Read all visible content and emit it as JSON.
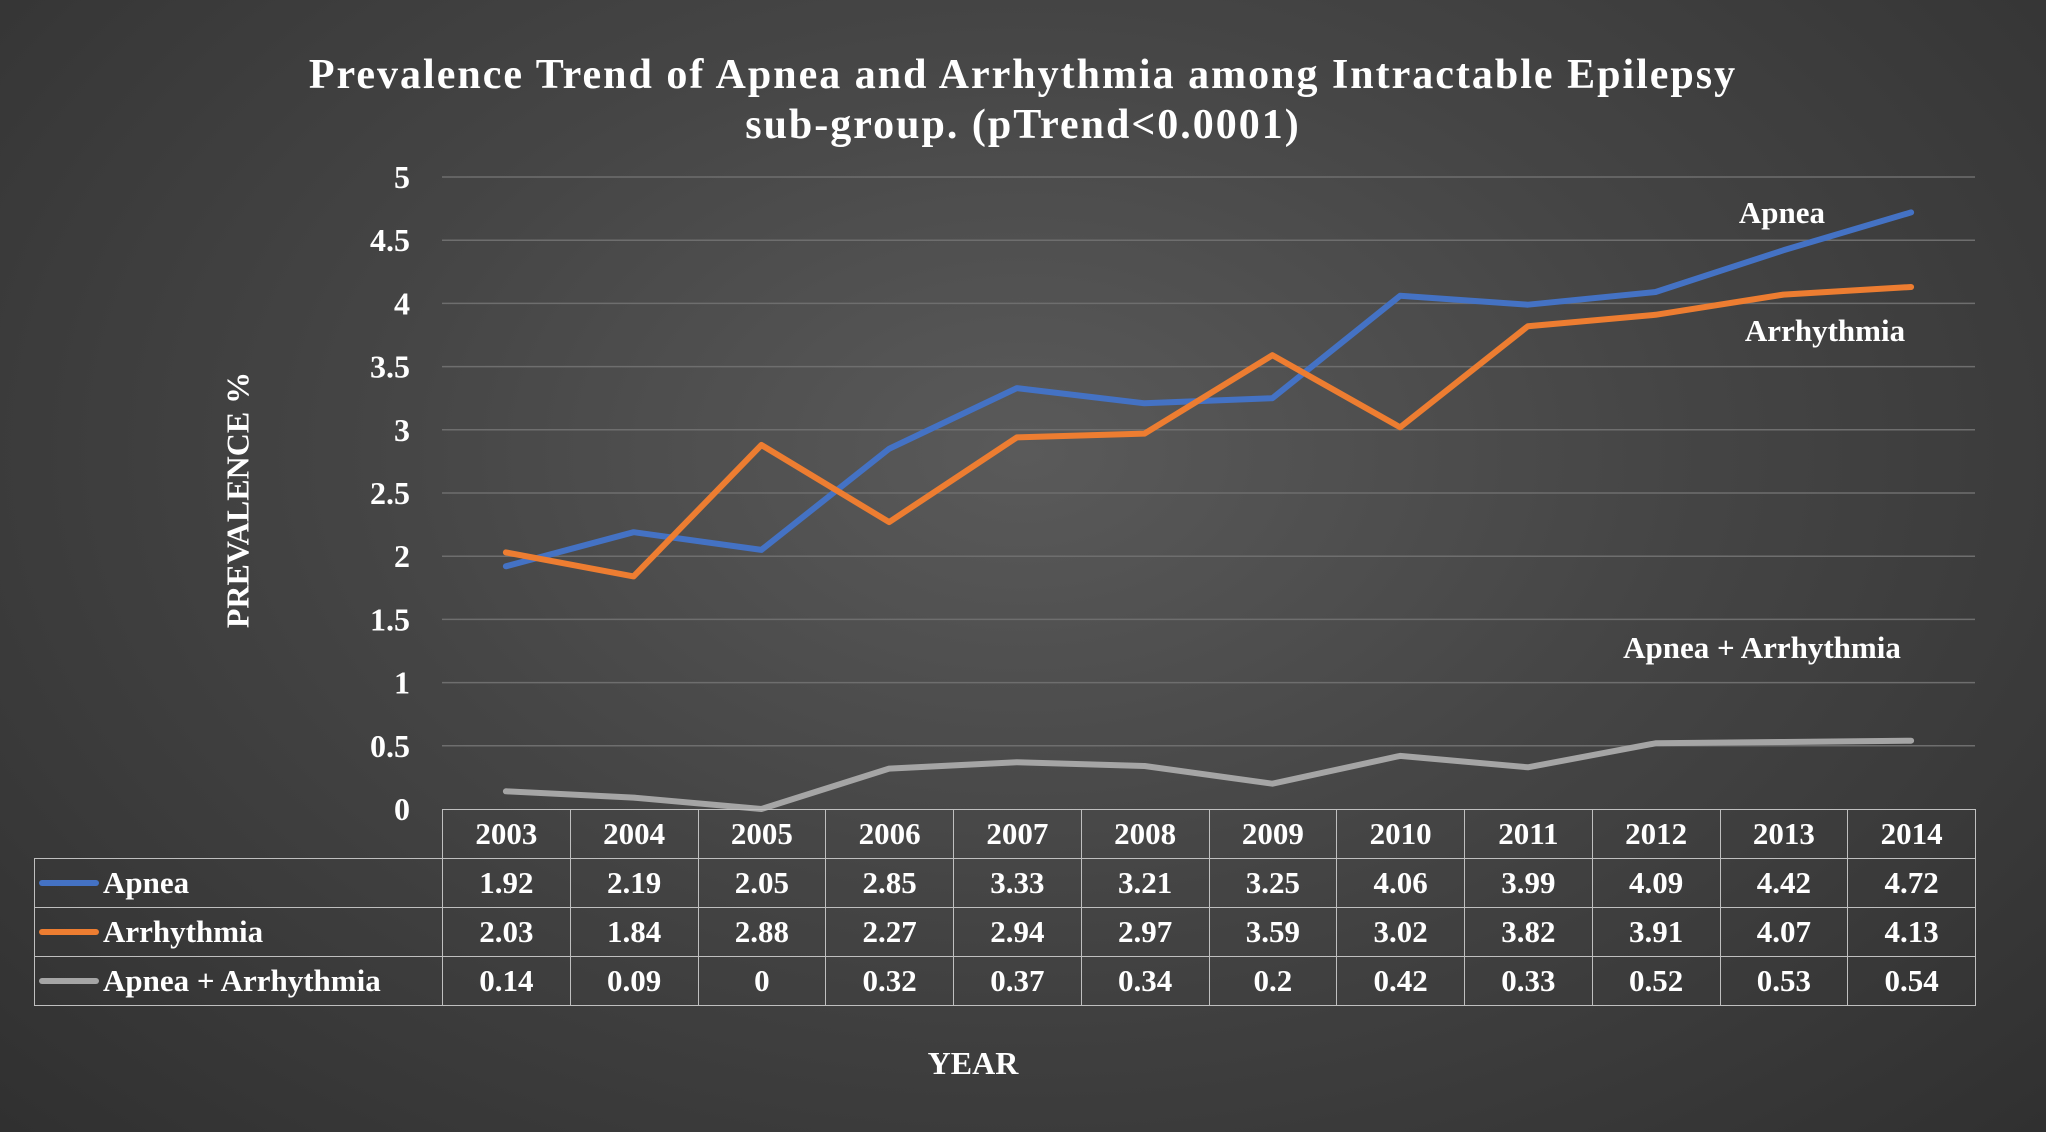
{
  "chart_data": {
    "type": "line",
    "title": "Prevalence Trend of Apnea and Arrhythmia among Intractable Epilepsy\nsub-group. (pTrend<0.0001)",
    "xlabel": "YEAR",
    "ylabel": "PREVALENCE %",
    "ylim": [
      0,
      5
    ],
    "yticks": [
      "0",
      "0.5",
      "1",
      "1.5",
      "2",
      "2.5",
      "3",
      "3.5",
      "4",
      "4.5",
      "5"
    ],
    "grid": true,
    "legend": "data table below plot",
    "categories": [
      "2003",
      "2004",
      "2005",
      "2006",
      "2007",
      "2008",
      "2009",
      "2010",
      "2011",
      "2012",
      "2013",
      "2014"
    ],
    "series": [
      {
        "name": "Apnea",
        "color": "#4472c4",
        "values": [
          1.92,
          2.19,
          2.05,
          2.85,
          3.33,
          3.21,
          3.25,
          4.06,
          3.99,
          4.09,
          4.42,
          4.72
        ],
        "label_text": [
          "1.92",
          "2.19",
          "2.05",
          "2.85",
          "3.33",
          "3.21",
          "3.25",
          "4.06",
          "3.99",
          "4.09",
          "4.42",
          "4.72"
        ]
      },
      {
        "name": "Arrhythmia",
        "color": "#ed7d31",
        "values": [
          2.03,
          1.84,
          2.88,
          2.27,
          2.94,
          2.97,
          3.59,
          3.02,
          3.82,
          3.91,
          4.07,
          4.13
        ],
        "label_text": [
          "2.03",
          "1.84",
          "2.88",
          "2.27",
          "2.94",
          "2.97",
          "3.59",
          "3.02",
          "3.82",
          "3.91",
          "4.07",
          "4.13"
        ]
      },
      {
        "name": "Apnea + Arrhythmia",
        "color": "#a5a5a5",
        "values": [
          0.14,
          0.09,
          0,
          0.32,
          0.37,
          0.34,
          0.2,
          0.42,
          0.33,
          0.52,
          0.53,
          0.54
        ],
        "label_text": [
          "0.14",
          "0.09",
          "0",
          "0.32",
          "0.37",
          "0.34",
          "0.2",
          "0.42",
          "0.33",
          "0.52",
          "0.53",
          "0.54"
        ]
      }
    ],
    "annotations": [
      "Apnea",
      "Arrhythmia",
      "Apnea + Arrhythmia"
    ]
  }
}
